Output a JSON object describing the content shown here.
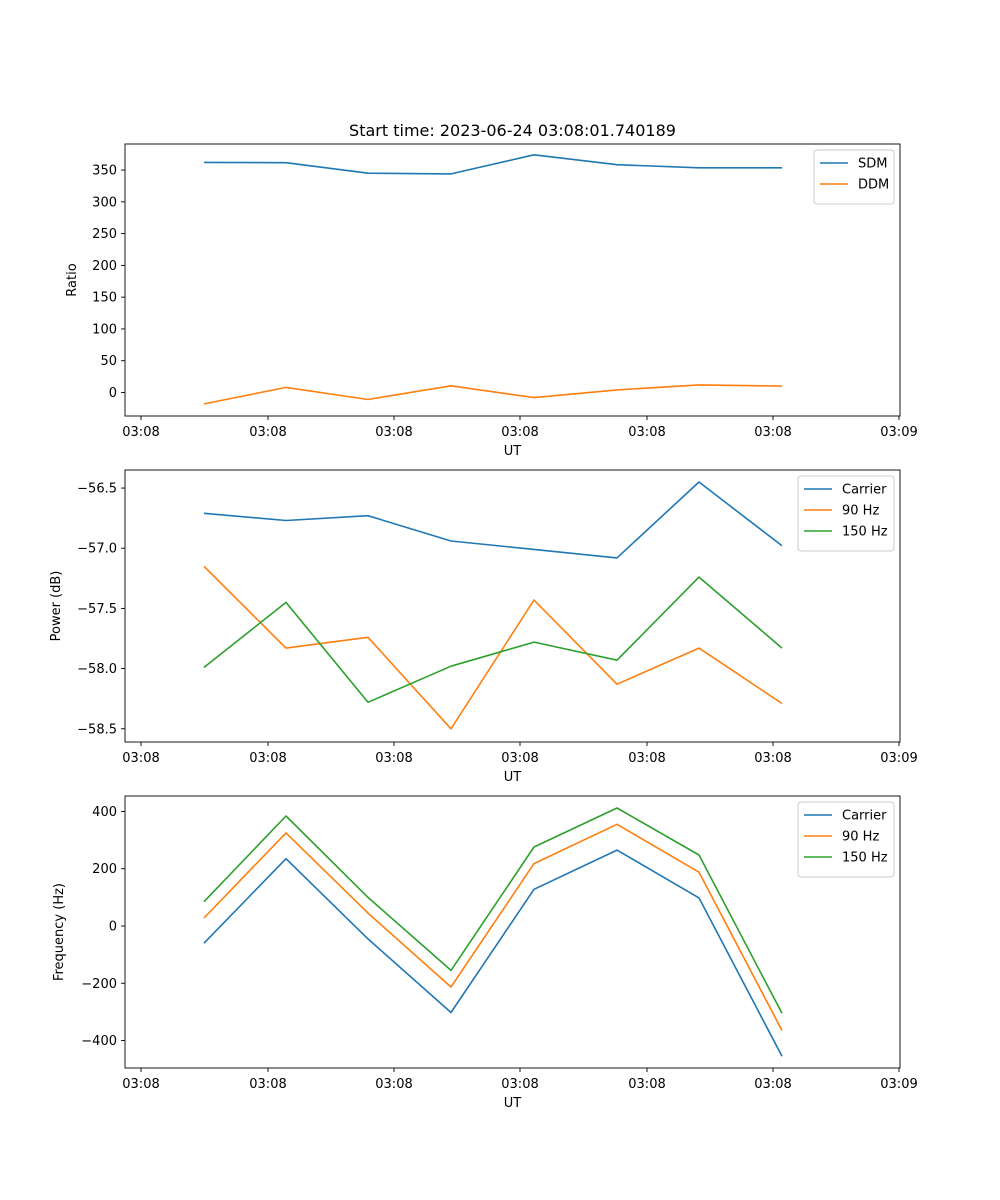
{
  "figure": {
    "title": "Start time: 2023-06-24 03:08:01.740189"
  },
  "chart_data": [
    {
      "type": "line",
      "xlabel": "UT",
      "ylabel": "Ratio",
      "x_tick_labels": [
        "03:08",
        "03:08",
        "03:08",
        "03:08",
        "03:08",
        "03:08",
        "03:08",
        "03:09"
      ],
      "y_ticks": [
        0,
        50,
        100,
        150,
        200,
        250,
        300,
        350
      ],
      "ylim": [
        -37,
        391
      ],
      "legend_position": "top-right",
      "series": [
        {
          "name": "SDM",
          "color": "#1f77b4",
          "values": [
            362,
            361.5,
            345,
            344,
            374,
            358.5,
            353.5,
            353.5
          ]
        },
        {
          "name": "DDM",
          "color": "#ff7f0e",
          "values": [
            -18,
            8,
            -11,
            10.5,
            -8,
            4,
            12,
            10
          ]
        }
      ]
    },
    {
      "type": "line",
      "xlabel": "UT",
      "ylabel": "Power (dB)",
      "x_tick_labels": [
        "03:08",
        "03:08",
        "03:08",
        "03:08",
        "03:08",
        "03:08",
        "03:08",
        "03:09"
      ],
      "y_ticks": [
        -58.5,
        -58.0,
        -57.5,
        -57.0,
        -56.5
      ],
      "y_tick_labels": [
        "−58.5",
        "−58.0",
        "−57.5",
        "−57.0",
        "−56.5"
      ],
      "ylim": [
        -58.61,
        -56.35
      ],
      "legend_position": "top-right",
      "series": [
        {
          "name": "Carrier",
          "color": "#1f77b4",
          "values": [
            -56.71,
            -56.77,
            -56.73,
            -56.94,
            -57.01,
            -57.08,
            -56.45,
            -56.98
          ]
        },
        {
          "name": "90 Hz",
          "color": "#ff7f0e",
          "values": [
            -57.15,
            -57.83,
            -57.74,
            -58.5,
            -57.43,
            -58.13,
            -57.83,
            -58.29
          ]
        },
        {
          "name": "150 Hz",
          "color": "#2ca02c",
          "values": [
            -57.99,
            -57.45,
            -58.28,
            -57.98,
            -57.78,
            -57.93,
            -57.24,
            -57.83
          ]
        }
      ]
    },
    {
      "type": "line",
      "xlabel": "UT",
      "ylabel": "Frequency (Hz)",
      "x_tick_labels": [
        "03:08",
        "03:08",
        "03:08",
        "03:08",
        "03:08",
        "03:08",
        "03:08",
        "03:09"
      ],
      "y_ticks": [
        -400,
        -200,
        0,
        200,
        400
      ],
      "y_tick_labels": [
        "−400",
        "−200",
        "0",
        "200",
        "400"
      ],
      "ylim": [
        -496,
        454
      ],
      "legend_position": "top-right",
      "series": [
        {
          "name": "Carrier",
          "color": "#1f77b4",
          "values": [
            -60,
            235,
            -45,
            -302,
            128,
            265,
            98,
            -455
          ]
        },
        {
          "name": "90 Hz",
          "color": "#ff7f0e",
          "values": [
            28,
            325,
            45,
            -213,
            218,
            355,
            188,
            -365
          ]
        },
        {
          "name": "150 Hz",
          "color": "#2ca02c",
          "values": [
            85,
            384,
            100,
            -155,
            276,
            412,
            248,
            -305
          ]
        }
      ]
    }
  ]
}
